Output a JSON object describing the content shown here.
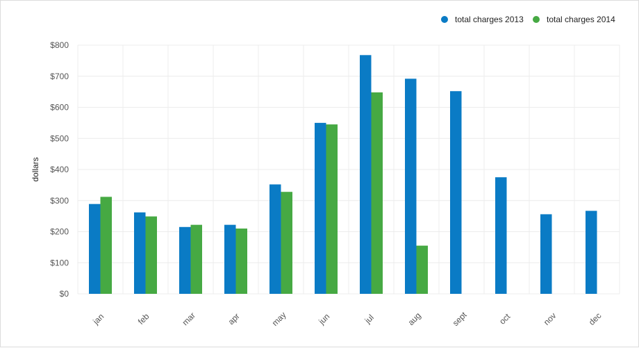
{
  "chart_data": {
    "type": "bar",
    "categories": [
      "jan",
      "feb",
      "mar",
      "apr",
      "may",
      "jun",
      "jul",
      "aug",
      "sept",
      "oct",
      "nov",
      "dec"
    ],
    "series": [
      {
        "name": "total charges 2013",
        "color": "#0a7bc5",
        "values": [
          289,
          262,
          215,
          222,
          352,
          550,
          768,
          692,
          652,
          375,
          256,
          267
        ]
      },
      {
        "name": "total charges 2014",
        "color": "#46a943",
        "values": [
          312,
          249,
          222,
          210,
          328,
          545,
          648,
          155,
          null,
          null,
          null,
          null
        ]
      }
    ],
    "title": "",
    "xlabel": "",
    "ylabel": "dollars",
    "ylim": [
      0,
      800
    ],
    "yticks": [
      0,
      100,
      200,
      300,
      400,
      500,
      600,
      700,
      800
    ],
    "ytick_labels": [
      "$0",
      "$100",
      "$200",
      "$300",
      "$400",
      "$500",
      "$600",
      "$700",
      "$800"
    ],
    "grid": true,
    "legend_position": "top-right"
  }
}
